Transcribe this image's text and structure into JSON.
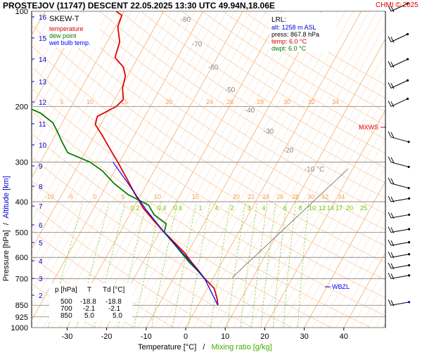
{
  "header": {
    "title": "PROSTEJOV (11747)   DESCENT   22.05.2025 13:30 UTC  49.94N,18.06E",
    "copyright": "CHMI © 2025"
  },
  "legend": {
    "title": "SKEW-T",
    "items": [
      {
        "label": "temperature",
        "color": "#e00000"
      },
      {
        "label": "dew point",
        "color": "#008000"
      },
      {
        "label": "wet bulb temp.",
        "color": "#0000ff"
      }
    ]
  },
  "lrl": {
    "title": "LRL:",
    "alt": "alt: 1258 m ASL",
    "press": "press: 867.8 hPa",
    "temp": "temp: 6.0 °C",
    "dwpt": "dwpt: 6.0 °C"
  },
  "table": {
    "headers": [
      "p [hPa]",
      "T",
      "Td [°C]"
    ],
    "rows": [
      [
        "500",
        "-18.8",
        "-18.8"
      ],
      [
        "700",
        "-2.1",
        "-2.1"
      ],
      [
        "850",
        "5.0",
        "5.0"
      ]
    ]
  },
  "labels": {
    "ylabel_pressure": "Pressure [hPa]",
    "ylabel_slash": "/",
    "ylabel_altitude": "Altitude [km]",
    "xlabel_temp": "Temperature [°C]",
    "xlabel_slash": "/",
    "xlabel_mix": "Mixing ratio [g/kg]",
    "mxws": "MXWS",
    "wbzl": "WBZL"
  },
  "colors": {
    "temperature": "#e00000",
    "dewpoint": "#008000",
    "wetbulb": "#0000ff",
    "isobar": "#7f7f7f",
    "isotherm": "#ffb070",
    "mixing_ratio": "#80cc40",
    "altitude_axis": "#0000cc"
  },
  "chart_data": {
    "type": "line",
    "subtype": "skew-t log-p",
    "x_ticks": [
      -30,
      -20,
      -10,
      0,
      10,
      20,
      30,
      40
    ],
    "xlim": [
      -35,
      45
    ],
    "pressure_ticks": [
      100,
      200,
      300,
      400,
      500,
      600,
      700,
      850,
      925,
      1000
    ],
    "ylim": [
      1000,
      100
    ],
    "y_scale": "log",
    "altitude_ticks_km": [
      16,
      15,
      14,
      13,
      12,
      11,
      10,
      9,
      8,
      7,
      6,
      5,
      4,
      3,
      2
    ],
    "isotherm_labels_lower": [
      -10,
      -5,
      0,
      5,
      10,
      15,
      20,
      22,
      24,
      26,
      28,
      30,
      32,
      34
    ],
    "isotherm_labels_upper": [
      5,
      10,
      15,
      20,
      24,
      26,
      28,
      30,
      32,
      34
    ],
    "dry_adiabat_labels": [
      -80,
      -70,
      -60,
      -50,
      -40,
      -30,
      -20,
      -10
    ],
    "mixing_ratio_labels": [
      "0.2",
      "0.4",
      "0.6",
      "1",
      "4",
      "2",
      "3",
      "4",
      "6",
      "8",
      "10",
      "12",
      "14",
      "17",
      "20",
      "25"
    ],
    "series": [
      {
        "name": "temperature",
        "points": [
          [
            850,
            5.0
          ],
          [
            820,
            4.2
          ],
          [
            780,
            2.8
          ],
          [
            750,
            1.6
          ],
          [
            700,
            -2.1
          ],
          [
            660,
            -4.8
          ],
          [
            620,
            -7.8
          ],
          [
            580,
            -10.8
          ],
          [
            540,
            -14.6
          ],
          [
            500,
            -18.8
          ],
          [
            460,
            -23.0
          ],
          [
            420,
            -27.4
          ],
          [
            380,
            -31.4
          ],
          [
            340,
            -35.6
          ],
          [
            300,
            -40.4
          ],
          [
            270,
            -44.6
          ],
          [
            245,
            -48.4
          ],
          [
            228,
            -51.4
          ],
          [
            215,
            -52.0
          ],
          [
            200,
            -48.6
          ],
          [
            190,
            -47.8
          ],
          [
            175,
            -49.6
          ],
          [
            160,
            -50.6
          ],
          [
            150,
            -52.4
          ],
          [
            140,
            -55.8
          ],
          [
            125,
            -56.8
          ],
          [
            112,
            -59.4
          ],
          [
            103,
            -60.0
          ],
          [
            100,
            -62.0
          ]
        ]
      },
      {
        "name": "dew point",
        "points": [
          [
            700,
            -2.1
          ],
          [
            660,
            -5.0
          ],
          [
            620,
            -8.4
          ],
          [
            580,
            -11.6
          ],
          [
            540,
            -15.0
          ],
          [
            500,
            -18.8
          ],
          [
            470,
            -19.5
          ],
          [
            440,
            -23.8
          ],
          [
            410,
            -26.6
          ],
          [
            380,
            -33.2
          ],
          [
            350,
            -38.4
          ],
          [
            320,
            -43.0
          ],
          [
            300,
            -47.4
          ],
          [
            280,
            -54.4
          ],
          [
            260,
            -57.2
          ],
          [
            240,
            -60.0
          ],
          [
            225,
            -62.4
          ],
          [
            210,
            -66.8
          ],
          [
            200,
            -71.6
          ],
          [
            180,
            -73.0
          ],
          [
            160,
            -75.2
          ],
          [
            140,
            -78.8
          ],
          [
            120,
            -82.0
          ],
          [
            100,
            -84.0
          ]
        ]
      },
      {
        "name": "wet bulb temp.",
        "points": [
          [
            850,
            5.0
          ],
          [
            700,
            -2.1
          ],
          [
            600,
            -9.6
          ],
          [
            500,
            -18.8
          ],
          [
            420,
            -27.0
          ],
          [
            360,
            -33.6
          ],
          [
            300,
            -41.6
          ]
        ]
      }
    ],
    "wind_barbs_hpa": [
      100,
      125,
      150,
      175,
      200,
      250,
      300,
      350,
      400,
      450,
      500,
      550,
      600,
      650,
      700,
      850
    ]
  }
}
